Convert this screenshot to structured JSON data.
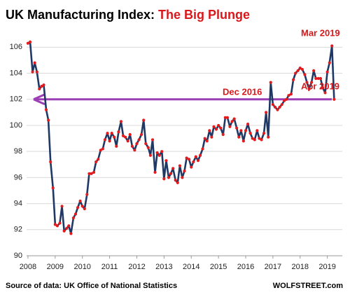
{
  "chart_data": {
    "type": "line",
    "title": "UK Manufacturing  Index: ",
    "title_highlight": "The Big Plunge",
    "source": "Source of data: UK Office of National Statistics",
    "brand": "WOLFSTREET.com",
    "annotations": [
      "Dec 2016",
      "Mar 2019",
      "Apr 2019"
    ],
    "color": "#1f3864",
    "marker_color": "#e41a1c",
    "annotation_color": "#d7191c",
    "reference_line": {
      "value": 102,
      "color": "#9b3fb5"
    },
    "grid": true,
    "xlim": [
      2007.95,
      2019.55
    ],
    "xticks": [
      2008,
      2009,
      2010,
      2011,
      2012,
      2013,
      2014,
      2015,
      2016,
      2017,
      2018,
      2019
    ],
    "ylim": [
      90,
      107.2
    ],
    "yticks": [
      90,
      92,
      94,
      96,
      98,
      100,
      102,
      104,
      106
    ],
    "x": [
      2008,
      2008.08,
      2008.17,
      2008.25,
      2008.33,
      2008.42,
      2008.5,
      2008.58,
      2008.67,
      2008.75,
      2008.83,
      2008.92,
      2009,
      2009.08,
      2009.17,
      2009.25,
      2009.33,
      2009.42,
      2009.5,
      2009.58,
      2009.67,
      2009.75,
      2009.83,
      2009.92,
      2010,
      2010.08,
      2010.17,
      2010.25,
      2010.33,
      2010.42,
      2010.5,
      2010.58,
      2010.67,
      2010.75,
      2010.83,
      2010.92,
      2011,
      2011.08,
      2011.17,
      2011.25,
      2011.33,
      2011.42,
      2011.5,
      2011.58,
      2011.67,
      2011.75,
      2011.83,
      2011.92,
      2012,
      2012.08,
      2012.17,
      2012.25,
      2012.33,
      2012.42,
      2012.5,
      2012.58,
      2012.67,
      2012.75,
      2012.83,
      2012.92,
      2013,
      2013.08,
      2013.17,
      2013.25,
      2013.33,
      2013.42,
      2013.5,
      2013.58,
      2013.67,
      2013.75,
      2013.83,
      2013.92,
      2014,
      2014.08,
      2014.17,
      2014.25,
      2014.33,
      2014.42,
      2014.5,
      2014.58,
      2014.67,
      2014.75,
      2014.83,
      2014.92,
      2015,
      2015.08,
      2015.17,
      2015.25,
      2015.33,
      2015.42,
      2015.5,
      2015.58,
      2015.67,
      2015.75,
      2015.83,
      2015.92,
      2016,
      2016.08,
      2016.17,
      2016.25,
      2016.33,
      2016.42,
      2016.5,
      2016.58,
      2016.67,
      2016.75,
      2016.83,
      2016.92,
      2017,
      2017.08,
      2017.17,
      2017.25,
      2017.33,
      2017.42,
      2017.5,
      2017.58,
      2017.67,
      2017.75,
      2017.83,
      2017.92,
      2018,
      2018.08,
      2018.17,
      2018.25,
      2018.33,
      2018.42,
      2018.5,
      2018.58,
      2018.67,
      2018.75,
      2018.83,
      2018.92,
      2019,
      2019.08,
      2019.17,
      2019.25
    ],
    "values": [
      106.3,
      106.4,
      104.1,
      104.8,
      104.1,
      102.8,
      103.0,
      103.1,
      101.2,
      100.4,
      97.2,
      95.2,
      92.4,
      92.3,
      92.5,
      93.8,
      91.9,
      92.1,
      92.3,
      91.7,
      92.9,
      93.2,
      93.7,
      94.2,
      93.8,
      93.6,
      94.7,
      96.3,
      96.3,
      96.4,
      97.2,
      97.4,
      98.1,
      98.2,
      98.9,
      99.4,
      98.8,
      99.4,
      99.1,
      98.4,
      99.5,
      100.3,
      99.2,
      99.1,
      98.8,
      99.3,
      98.4,
      98.1,
      98.6,
      98.9,
      99.3,
      100.4,
      98.6,
      98.3,
      97.7,
      98.9,
      96.4,
      97.9,
      97.7,
      98.0,
      95.9,
      97.3,
      96.0,
      96.3,
      96.7,
      95.8,
      95.6,
      96.9,
      96.0,
      96.5,
      97.5,
      97.4,
      96.8,
      97.2,
      97.6,
      97.3,
      97.7,
      98.2,
      99.0,
      98.8,
      99.6,
      99.1,
      99.9,
      99.7,
      100.0,
      99.8,
      99.3,
      100.6,
      100.6,
      99.9,
      100.3,
      100.5,
      99.8,
      99.1,
      99.6,
      98.8,
      99.6,
      100.1,
      99.4,
      99.0,
      98.9,
      99.6,
      99.0,
      98.9,
      99.4,
      101.0,
      99.1,
      103.3,
      101.6,
      101.4,
      101.2,
      101.4,
      101.6,
      101.9,
      102.0,
      102.3,
      102.4,
      103.5,
      104.0,
      104.2,
      104.4,
      104.3,
      103.9,
      103.3,
      102.8,
      103.3,
      104.2,
      103.6,
      103.6,
      103.6,
      102.9,
      102.5,
      104.1,
      104.8,
      106.1,
      102.0
    ]
  }
}
